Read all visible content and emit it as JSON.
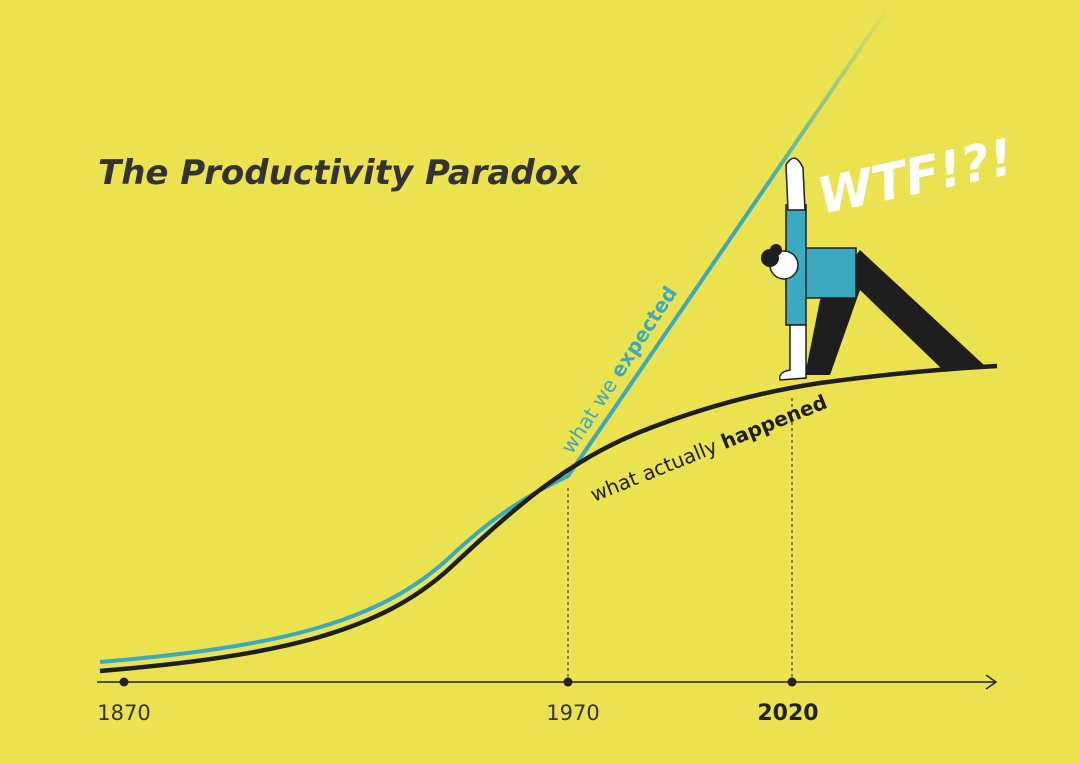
{
  "header": {
    "title": "The Productivity Paradox"
  },
  "axis": {
    "labels": [
      "1870",
      "1970",
      "2020"
    ]
  },
  "curves": {
    "expected": {
      "prefix": "what we",
      "emphasis": "expected"
    },
    "actual": {
      "prefix": "what actually",
      "emphasis": "happened"
    }
  },
  "exclamation": "WTF!?!"
}
